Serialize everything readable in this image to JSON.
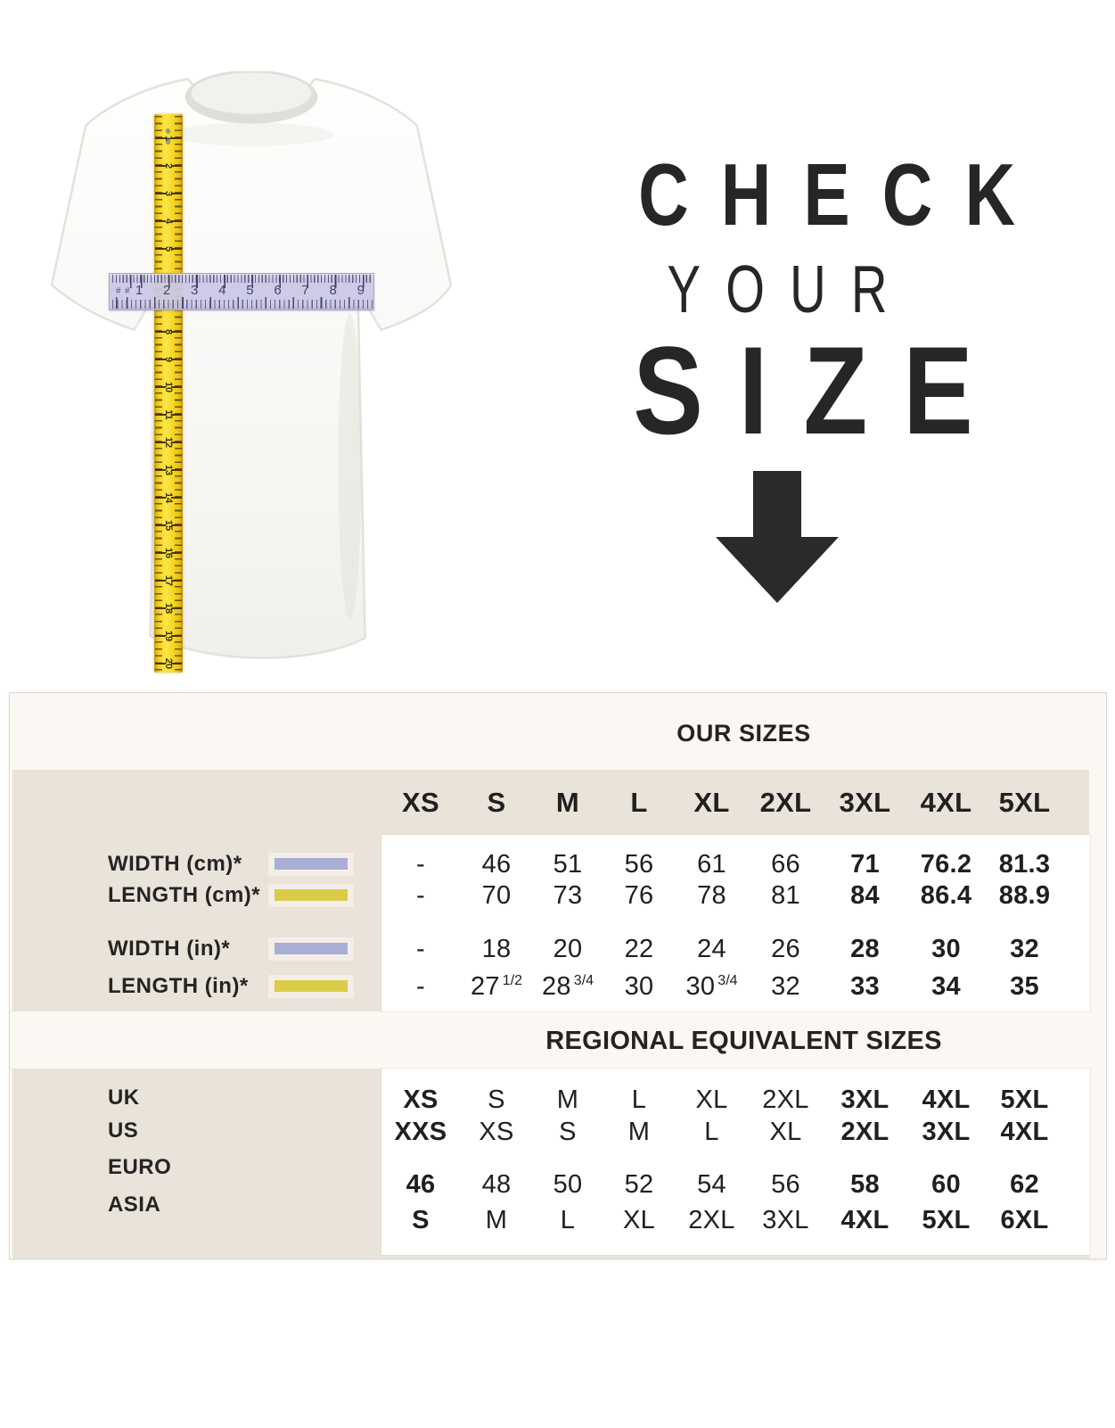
{
  "hero": {
    "title_lines": [
      "CHECK",
      "YOUR",
      "SIZE"
    ],
    "tape_numbers": [
      "1",
      "2",
      "3",
      "4",
      "5",
      "6",
      "7",
      "8",
      "9",
      "10",
      "11",
      "12",
      "13",
      "14",
      "15",
      "16",
      "17",
      "18",
      "19",
      "20"
    ],
    "ruler_numbers": [
      "1",
      "2",
      "3",
      "4",
      "5",
      "6",
      "7",
      "8",
      "9"
    ],
    "ruler_edge_marks": [
      "#",
      "#"
    ]
  },
  "chart_data": [
    {
      "type": "table",
      "title": "OUR SIZES",
      "columns": [
        "XS",
        "S",
        "M",
        "L",
        "XL",
        "2XL",
        "3XL",
        "4XL",
        "5XL"
      ],
      "bold_value_columns": [
        6,
        7,
        8
      ],
      "rows": [
        {
          "label": "WIDTH (cm)*",
          "swatch": "lavender",
          "values": [
            "-",
            "46",
            "51",
            "56",
            "61",
            "66",
            "71",
            "76.2",
            "81.3"
          ]
        },
        {
          "label": "LENGTH (cm)*",
          "swatch": "yellow",
          "values": [
            "-",
            "70",
            "73",
            "76",
            "78",
            "81",
            "84",
            "86.4",
            "88.9"
          ]
        },
        {
          "label": "WIDTH (in)*",
          "swatch": "lavender",
          "values": [
            "-",
            "18",
            "20",
            "22",
            "24",
            "26",
            "28",
            "30",
            "32"
          ]
        },
        {
          "label": "LENGTH (in)*",
          "swatch": "yellow",
          "values": [
            "-",
            "27 1/2",
            "28 3/4",
            "30",
            "30 3/4",
            "32",
            "33",
            "34",
            "35"
          ]
        }
      ]
    },
    {
      "type": "table",
      "title": "REGIONAL EQUIVALENT SIZES",
      "columns": [
        "XS",
        "S",
        "M",
        "L",
        "XL",
        "2XL",
        "3XL",
        "4XL",
        "5XL"
      ],
      "bold_value_columns": [
        0,
        6,
        7,
        8
      ],
      "rows": [
        {
          "label": "UK",
          "values": [
            "XS",
            "S",
            "M",
            "L",
            "XL",
            "2XL",
            "3XL",
            "4XL",
            "5XL"
          ]
        },
        {
          "label": "US",
          "values": [
            "XXS",
            "XS",
            "S",
            "M",
            "L",
            "XL",
            "2XL",
            "3XL",
            "4XL"
          ]
        },
        {
          "label": "EURO",
          "values": [
            "46",
            "48",
            "50",
            "52",
            "54",
            "56",
            "58",
            "60",
            "62"
          ]
        },
        {
          "label": "ASIA",
          "values": [
            "S",
            "M",
            "L",
            "XL",
            "2XL",
            "3XL",
            "4XL",
            "5XL",
            "6XL"
          ]
        }
      ]
    }
  ],
  "colors": {
    "lavender": "#a9aed5",
    "yellow": "#d9cc48",
    "tape_yellow": "#f8d824",
    "ruler_lavender": "#cac8e4",
    "table_beige": "#eae3da",
    "table_cream": "#fbf7f2",
    "text_dark": "#262626",
    "arrow": "#2a2a2a"
  }
}
